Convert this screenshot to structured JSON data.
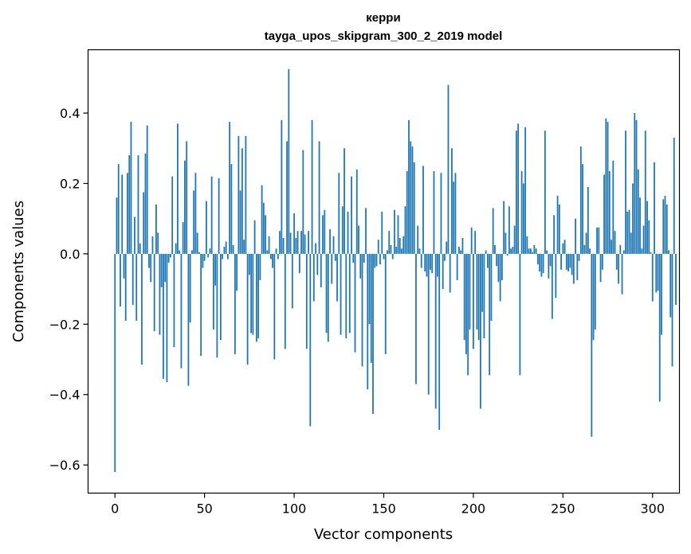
{
  "chart_data": {
    "type": "bar",
    "title": "керри",
    "subtitle": "tayga_upos_skipgram_300_2_2019 model",
    "xlabel": "Vector components",
    "ylabel": "Components values",
    "xlim": [
      -15,
      315
    ],
    "ylim": [
      -0.68,
      0.58
    ],
    "xticks": [
      0,
      50,
      100,
      150,
      200,
      250,
      300
    ],
    "xtick_labels": [
      "0",
      "50",
      "100",
      "150",
      "200",
      "250",
      "300"
    ],
    "yticks": [
      -0.6,
      -0.4,
      -0.2,
      0.0,
      0.2,
      0.4
    ],
    "ytick_labels": [
      "−0.6",
      "−0.4",
      "−0.2",
      "0.0",
      "0.2",
      "0.4"
    ],
    "bar_color": "#1f77b4",
    "values": [
      -0.62,
      0.16,
      0.255,
      -0.15,
      0.225,
      -0.07,
      -0.19,
      0.23,
      0.28,
      0.375,
      -0.145,
      0.105,
      -0.19,
      0.28,
      0.03,
      -0.315,
      0.175,
      0.285,
      0.365,
      -0.04,
      -0.08,
      0.05,
      -0.22,
      0.14,
      0.06,
      -0.23,
      -0.095,
      -0.355,
      -0.08,
      -0.365,
      -0.025,
      -0.01,
      0.22,
      -0.265,
      0.03,
      0.37,
      0.01,
      -0.325,
      0.09,
      0.265,
      0.32,
      -0.375,
      -0.195,
      0.01,
      0.18,
      0.23,
      0.06,
      0.005,
      -0.29,
      -0.04,
      -0.02,
      0.15,
      -0.01,
      0.015,
      0.22,
      -0.215,
      -0.09,
      -0.295,
      0.215,
      -0.245,
      -0.015,
      0.02,
      0.035,
      -0.015,
      0.375,
      0.255,
      0.025,
      -0.285,
      -0.105,
      0.335,
      0.18,
      0.3,
      0.04,
      0.335,
      -0.315,
      -0.06,
      -0.225,
      -0.23,
      0.095,
      -0.25,
      -0.24,
      -0.075,
      0.195,
      0.145,
      0.11,
      0.01,
      0.05,
      -0.015,
      -0.04,
      -0.3,
      0.015,
      -0.015,
      0.065,
      0.38,
      0.045,
      -0.27,
      0.32,
      0.525,
      0.06,
      -0.155,
      0.115,
      0.045,
      0.065,
      -0.055,
      0.065,
      0.295,
      0.055,
      -0.27,
      0.065,
      -0.49,
      0.38,
      -0.135,
      0.03,
      -0.06,
      0.32,
      -0.095,
      0.11,
      0.125,
      -0.225,
      -0.25,
      0.07,
      -0.085,
      0.05,
      -0.02,
      -0.135,
      0.23,
      -0.23,
      0.135,
      0.3,
      -0.24,
      0.12,
      -0.225,
      0.22,
      -0.025,
      -0.28,
      0.24,
      0.08,
      -0.07,
      -0.32,
      -0.025,
      0.13,
      -0.385,
      -0.2,
      -0.31,
      -0.455,
      -0.04,
      -0.035,
      0.04,
      -0.03,
      0.12,
      -0.015,
      -0.285,
      0.01,
      0.065,
      0.025,
      -0.015,
      0.125,
      0.02,
      0.11,
      0.045,
      0.015,
      0.05,
      0.135,
      0.235,
      0.38,
      0.32,
      0.305,
      0.26,
      -0.37,
      0.08,
      0.015,
      -0.04,
      0.25,
      -0.05,
      -0.065,
      -0.4,
      -0.045,
      -0.055,
      0.235,
      -0.44,
      -0.065,
      -0.5,
      0.23,
      -0.1,
      -0.02,
      0.035,
      0.48,
      -0.11,
      0.3,
      0.205,
      0.23,
      -0.075,
      0.02,
      0.01,
      0.045,
      -0.245,
      -0.285,
      -0.345,
      -0.215,
      0.075,
      -0.27,
      0.065,
      -0.215,
      -0.245,
      -0.44,
      -0.165,
      -0.24,
      0.01,
      -0.04,
      -0.345,
      -0.19,
      0.13,
      0.025,
      -0.035,
      -0.08,
      -0.135,
      -0.075,
      0.15,
      0.06,
      -0.005,
      0.135,
      0.015,
      0.02,
      0.08,
      0.35,
      0.37,
      -0.345,
      0.235,
      0.2,
      0.36,
      0.05,
      0.015,
      0.015,
      0.005,
      0.025,
      0.015,
      -0.03,
      -0.05,
      -0.065,
      -0.055,
      0.35,
      0.01,
      -0.07,
      -0.035,
      -0.185,
      0.11,
      -0.125,
      0.165,
      0.14,
      -0.045,
      0.03,
      0.04,
      -0.045,
      -0.05,
      -0.04,
      -0.06,
      -0.085,
      0.1,
      -0.075,
      -0.02,
      0.305,
      0.255,
      0.025,
      0.06,
      0.19,
      0.015,
      -0.52,
      -0.245,
      -0.215,
      0.075,
      0.075,
      -0.08,
      -0.045,
      0.225,
      0.385,
      0.375,
      0.235,
      0.04,
      0.265,
      0.065,
      -0.045,
      -0.085,
      0.025,
      -0.115,
      0.01,
      0.35,
      0.12,
      0.125,
      0.06,
      0.2,
      0.4,
      0.38,
      0.24,
      0.16,
      0.015,
      0.08,
      0.35,
      0.15,
      0.095,
      0.005,
      -0.135,
      0.26,
      -0.11,
      -0.105,
      -0.42,
      -0.23,
      0.155,
      0.165,
      0.14,
      0.01,
      -0.18,
      -0.32,
      0.33,
      -0.145
    ]
  }
}
